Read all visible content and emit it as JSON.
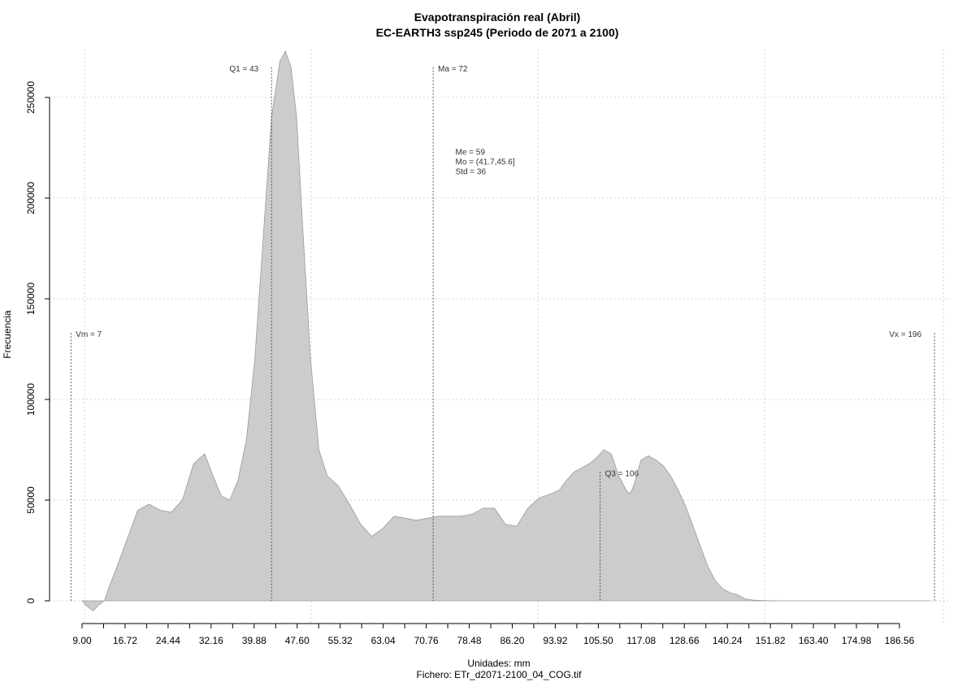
{
  "chart_data": {
    "type": "area",
    "title": "Evapotranspiración real (Abril)",
    "subtitle": "EC-EARTH3 ssp245 (Periodo de 2071 a 2100)",
    "xlabel": "Unidades: mm",
    "ylabel": "Frecuencia",
    "footer": "Fichero: ETr_d2071-2100_04_COG.tif",
    "xlim": [
      1,
      200
    ],
    "ylim": [
      -5000,
      270000
    ],
    "x_ticks": [
      9.0,
      16.72,
      24.44,
      32.16,
      39.88,
      47.6,
      55.32,
      63.04,
      70.76,
      78.48,
      86.2,
      93.92,
      105.5,
      117.08,
      128.66,
      140.24,
      151.82,
      163.4,
      174.98,
      186.56
    ],
    "x_tick_labels": [
      "9.00",
      "16.72",
      "24.44",
      "32.16",
      "39.88",
      "47.60",
      "55.32",
      "63.04",
      "70.76",
      "78.48",
      "86.20",
      "93.92",
      "105.50",
      "117.08",
      "128.66",
      "140.24",
      "151.82",
      "163.40",
      "174.98",
      "186.56"
    ],
    "y_ticks": [
      0,
      50000,
      100000,
      150000,
      200000,
      250000
    ],
    "y_tick_labels": [
      "0",
      "50000",
      "100000",
      "150000",
      "200000",
      "250000"
    ],
    "grid": true,
    "series": [
      {
        "color": "#cccccc",
        "x": [
          9,
          10,
          11,
          12,
          13,
          14,
          15,
          17,
          19,
          21,
          23,
          25,
          27,
          29,
          31,
          32.5,
          34,
          35.5,
          37,
          38.5,
          40,
          41.5,
          43,
          44.5,
          45.5,
          46.5,
          47.5,
          48.5,
          50,
          51.5,
          53,
          55,
          57,
          59,
          61,
          63,
          65,
          67,
          69,
          71,
          73,
          75,
          77,
          79,
          81,
          83,
          85,
          87,
          89,
          91,
          93,
          95,
          97,
          99,
          101,
          103,
          105,
          107,
          109,
          111,
          113,
          114,
          115,
          117,
          119,
          121,
          123,
          125,
          127,
          129,
          131,
          133,
          135,
          137,
          139,
          141,
          143,
          145,
          147,
          149,
          151,
          153,
          155,
          157,
          160,
          165,
          170,
          175,
          180,
          185,
          190,
          195
        ],
        "y": [
          0,
          -3000,
          -5000,
          -2000,
          0,
          8000,
          15000,
          30000,
          45000,
          48000,
          45000,
          44000,
          50000,
          68000,
          73000,
          62000,
          52000,
          50000,
          60000,
          80000,
          120000,
          180000,
          240000,
          268000,
          273000,
          265000,
          240000,
          190000,
          120000,
          75000,
          62000,
          57000,
          48000,
          38000,
          32000,
          36000,
          42000,
          41000,
          40000,
          41000,
          42000,
          42000,
          42000,
          43000,
          46000,
          46000,
          38000,
          37000,
          46000,
          51000,
          53000,
          55000,
          60000,
          64000,
          66000,
          68000,
          71000,
          75000,
          73000,
          62000,
          55000,
          53000,
          57000,
          70000,
          72000,
          70000,
          67000,
          62000,
          55000,
          47000,
          37000,
          27000,
          17000,
          10000,
          6000,
          4000,
          3000,
          1000,
          400,
          200,
          100,
          50,
          20,
          10,
          5,
          0,
          0,
          0,
          0,
          0,
          0,
          0
        ]
      }
    ],
    "vlines": [
      {
        "x": 7,
        "ymax": 133000,
        "label": "Vm = 7",
        "label_side": "right"
      },
      {
        "x": 43,
        "ymax": 265000,
        "label": "Q1 = 43",
        "label_side": "left"
      },
      {
        "x": 72,
        "ymax": 265000,
        "label": "Ma = 72",
        "label_side": "right"
      },
      {
        "x": 106,
        "ymax": 64000,
        "label": "Q3 = 106",
        "label_side": "right"
      },
      {
        "x": 196,
        "ymax": 133000,
        "label": "Vx = 196",
        "label_side": "left"
      }
    ],
    "stats": [
      "Me = 59",
      "Mo = (41.7,45.6]",
      "Std = 36"
    ],
    "stats_anchor": {
      "x": 76,
      "y": 216000
    }
  }
}
